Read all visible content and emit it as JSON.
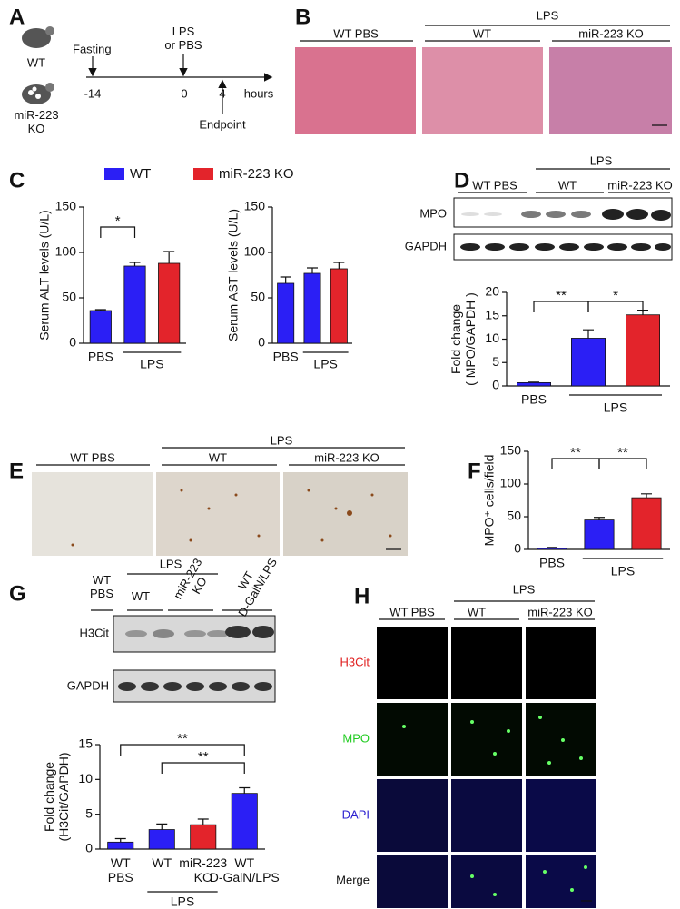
{
  "panels": {
    "A": {
      "letter": "A",
      "wt": "WT",
      "ko": [
        "miR-223",
        "KO"
      ],
      "fasting": "Fasting",
      "lps": [
        "LPS",
        "or PBS"
      ],
      "ticks": [
        "-14",
        "0",
        "4"
      ],
      "unit": "hours",
      "endpoint": "Endpoint"
    },
    "B": {
      "letter": "B",
      "group": "LPS",
      "columns": [
        "WT PBS",
        "WT",
        "miR-223 KO"
      ]
    },
    "C": {
      "letter": "C",
      "legend": [
        {
          "name": "WT",
          "color": "#2b1ff5"
        },
        {
          "name": "miR-223 KO",
          "color": "#e3242b"
        }
      ]
    },
    "D": {
      "letter": "D",
      "group": "LPS",
      "columns": [
        "WT PBS",
        "WT",
        "miR-223 KO"
      ],
      "rows": [
        "MPO",
        "GAPDH"
      ]
    },
    "E": {
      "letter": "E",
      "group": "LPS",
      "columns": [
        "WT PBS",
        "WT",
        "miR-223 KO"
      ]
    },
    "F": {
      "letter": "F"
    },
    "G": {
      "letter": "G",
      "group": "LPS",
      "columns": [
        [
          "WT",
          "PBS"
        ],
        [
          "WT"
        ],
        [
          "miR-223",
          "KO"
        ],
        [
          "WT",
          "D-GalN/LPS"
        ]
      ],
      "rows": [
        "H3Cit",
        "GAPDH"
      ]
    },
    "H": {
      "letter": "H",
      "group": "LPS",
      "columns": [
        "WT PBS",
        "WT",
        "miR-223 KO"
      ],
      "rows": [
        {
          "label": "H3Cit",
          "color": "#e02020"
        },
        {
          "label": "MPO",
          "color": "#22cc22"
        },
        {
          "label": "DAPI",
          "color": "#2a1fd0"
        },
        {
          "label": "Merge",
          "color": "#111111"
        }
      ]
    }
  },
  "chart_data": [
    {
      "type": "bar",
      "ylabel": "Serum ALT levels (U/L)",
      "categories": [
        "PBS",
        null,
        null
      ],
      "group_label": "LPS",
      "values": [
        36,
        85,
        88
      ],
      "errors": [
        1,
        4,
        13
      ],
      "colors": [
        "#2b1ff5",
        "#2b1ff5",
        "#e3242b"
      ],
      "ylim": [
        0,
        150
      ],
      "yticks": [
        0,
        50,
        100,
        150
      ],
      "annotations": [
        "*"
      ]
    },
    {
      "type": "bar",
      "ylabel": "Serum AST levels (U/L)",
      "categories": [
        "PBS",
        null,
        null
      ],
      "group_label": "LPS",
      "values": [
        66,
        77,
        82
      ],
      "errors": [
        7,
        6,
        7
      ],
      "colors": [
        "#2b1ff5",
        "#2b1ff5",
        "#e3242b"
      ],
      "ylim": [
        0,
        150
      ],
      "yticks": [
        0,
        50,
        100,
        150
      ],
      "annotations": []
    },
    {
      "type": "bar",
      "ylabel": [
        "Fold change",
        "( MPO/GAPDH )"
      ],
      "categories": [
        "PBS",
        null,
        null
      ],
      "group_label": "LPS",
      "values": [
        0.7,
        10.2,
        15.2
      ],
      "errors": [
        0.1,
        1.8,
        1.0
      ],
      "colors": [
        "#2b1ff5",
        "#2b1ff5",
        "#e3242b"
      ],
      "ylim": [
        0,
        20
      ],
      "yticks": [
        0,
        5,
        10,
        15,
        20
      ],
      "annotations": [
        "**",
        "*"
      ]
    },
    {
      "type": "bar",
      "ylabel": "MPO⁺ cells/field",
      "categories": [
        "PBS",
        null,
        null
      ],
      "group_label": "LPS",
      "values": [
        2,
        45,
        79
      ],
      "errors": [
        1,
        4,
        6
      ],
      "colors": [
        "#2b1ff5",
        "#2b1ff5",
        "#e3242b"
      ],
      "ylim": [
        0,
        150
      ],
      "yticks": [
        0,
        50,
        100,
        150
      ],
      "annotations": [
        "**",
        "**"
      ]
    },
    {
      "type": "bar",
      "ylabel": [
        "Fold change",
        "(H3Cit/GAPDH)"
      ],
      "categories": [
        [
          "WT",
          "PBS"
        ],
        [
          "WT"
        ],
        [
          "miR-223",
          "KO"
        ],
        [
          "WT",
          "D-GalN/LPS"
        ]
      ],
      "group_label": "LPS",
      "values": [
        1,
        2.8,
        3.5,
        8
      ],
      "errors": [
        0.5,
        0.8,
        0.8,
        0.8
      ],
      "colors": [
        "#2b1ff5",
        "#2b1ff5",
        "#e3242b",
        "#2b1ff5"
      ],
      "ylim": [
        0,
        15
      ],
      "yticks": [
        0,
        5,
        10,
        15
      ],
      "annotations": [
        "**",
        "**"
      ]
    }
  ]
}
